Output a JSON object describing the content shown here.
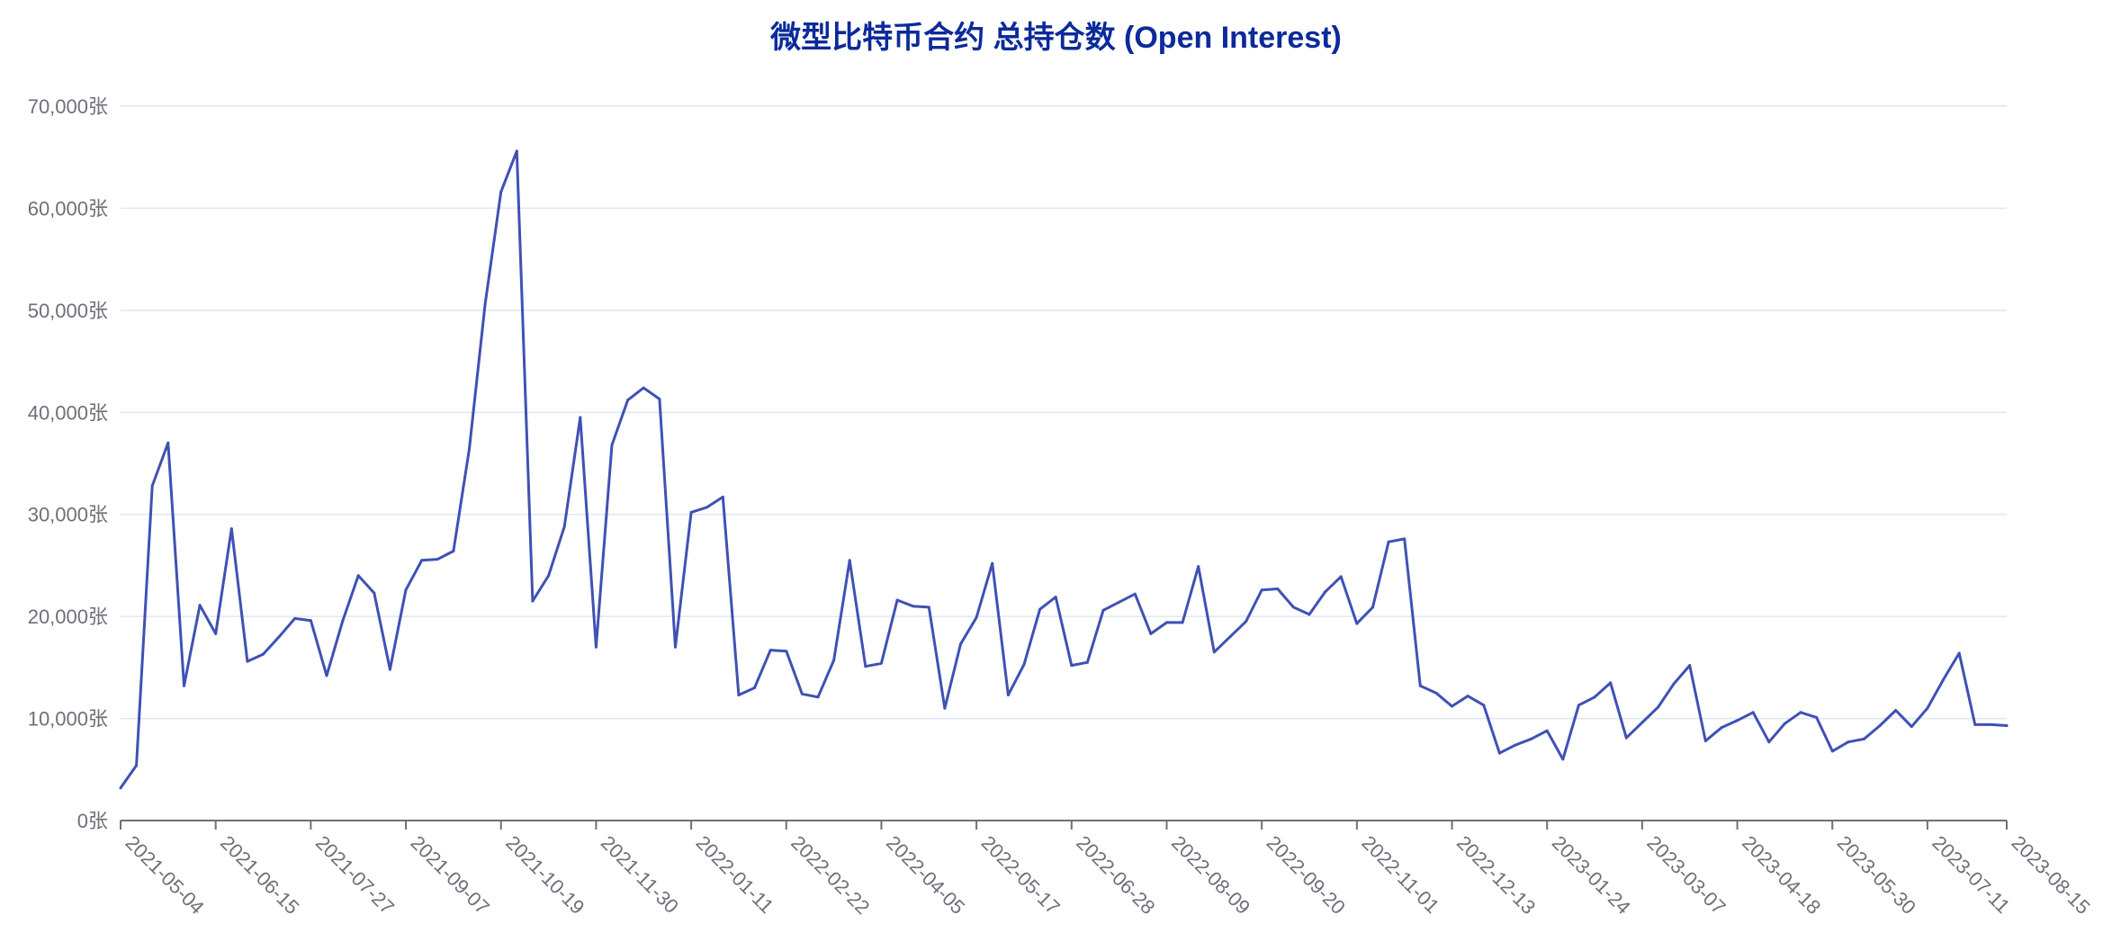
{
  "chart_data": {
    "type": "line",
    "title": "微型比特币合约 总持仓数 (Open Interest)",
    "xlabel": "",
    "ylabel": "",
    "ylim": [
      0,
      70000
    ],
    "y_ticks": [
      "0张",
      "10,000张",
      "20,000张",
      "30,000张",
      "40,000张",
      "50,000张",
      "60,000张",
      "70,000张"
    ],
    "x_ticks": [
      "2021-05-04",
      "2021-06-15",
      "2021-07-27",
      "2021-09-07",
      "2021-10-19",
      "2021-11-30",
      "2022-01-11",
      "2022-02-22",
      "2022-04-05",
      "2022-05-17",
      "2022-06-28",
      "2022-08-09",
      "2022-09-20",
      "2022-11-01",
      "2022-12-13",
      "2023-01-24",
      "2023-03-07",
      "2023-04-18",
      "2023-05-30",
      "2023-07-11",
      "2023-08-15"
    ],
    "grid": true,
    "legend": "none",
    "colors": {
      "line": "#3f51b5",
      "grid": "#e0e6f1",
      "axis": "#6e7079",
      "title": "#0c2a9a"
    },
    "series": [
      {
        "x": [
          "2021-05-04",
          "2021-05-11",
          "2021-05-18",
          "2021-05-25",
          "2021-06-01",
          "2021-06-08",
          "2021-06-15",
          "2021-06-22",
          "2021-06-29",
          "2021-07-06",
          "2021-07-13",
          "2021-07-20",
          "2021-07-27",
          "2021-08-03",
          "2021-08-10",
          "2021-08-17",
          "2021-08-24",
          "2021-08-31",
          "2021-09-07",
          "2021-09-14",
          "2021-09-21",
          "2021-09-28",
          "2021-10-05",
          "2021-10-12",
          "2021-10-19",
          "2021-10-26",
          "2021-11-02",
          "2021-11-09",
          "2021-11-16",
          "2021-11-23",
          "2021-11-30",
          "2021-12-07",
          "2021-12-14",
          "2021-12-21",
          "2021-12-28",
          "2022-01-04",
          "2022-01-11",
          "2022-01-18",
          "2022-01-25",
          "2022-02-01",
          "2022-02-08",
          "2022-02-15",
          "2022-02-22",
          "2022-03-01",
          "2022-03-08",
          "2022-03-15",
          "2022-03-22",
          "2022-03-29",
          "2022-04-05",
          "2022-04-12",
          "2022-04-19",
          "2022-04-26",
          "2022-05-03",
          "2022-05-10",
          "2022-05-17",
          "2022-05-24",
          "2022-05-31",
          "2022-06-07",
          "2022-06-14",
          "2022-06-21",
          "2022-06-28",
          "2022-07-05",
          "2022-07-12",
          "2022-07-19",
          "2022-07-26",
          "2022-08-02",
          "2022-08-09",
          "2022-08-16",
          "2022-08-23",
          "2022-08-30",
          "2022-09-06",
          "2022-09-13",
          "2022-09-20",
          "2022-09-27",
          "2022-10-04",
          "2022-10-11",
          "2022-10-18",
          "2022-10-25",
          "2022-11-01",
          "2022-11-08",
          "2022-11-15",
          "2022-11-22",
          "2022-11-29",
          "2022-12-06",
          "2022-12-13",
          "2022-12-20",
          "2022-12-27",
          "2023-01-03",
          "2023-01-10",
          "2023-01-17",
          "2023-01-24",
          "2023-01-31",
          "2023-02-07",
          "2023-02-14",
          "2023-02-21",
          "2023-02-28",
          "2023-03-07",
          "2023-03-14",
          "2023-03-21",
          "2023-03-28",
          "2023-04-04",
          "2023-04-11",
          "2023-04-18",
          "2023-04-25",
          "2023-05-02",
          "2023-05-09",
          "2023-05-16",
          "2023-05-23",
          "2023-05-30",
          "2023-06-06",
          "2023-06-13",
          "2023-06-20",
          "2023-06-27",
          "2023-07-04",
          "2023-07-11",
          "2023-07-18",
          "2023-07-25",
          "2023-08-01",
          "2023-08-08",
          "2023-08-15"
        ],
        "y": [
          3200,
          5400,
          32800,
          37000,
          13200,
          21100,
          18300,
          28600,
          15600,
          16300,
          18000,
          19800,
          19600,
          14200,
          19500,
          24000,
          22300,
          14800,
          22600,
          25500,
          25600,
          26400,
          36400,
          50600,
          61600,
          65600,
          21500,
          24000,
          28800,
          39500,
          17000,
          36800,
          41200,
          42400,
          41300,
          17000,
          30200,
          30700,
          31700,
          12300,
          13000,
          16700,
          16600,
          12400,
          12100,
          15700,
          25500,
          15100,
          15400,
          21600,
          21000,
          20900,
          11000,
          17300,
          19900,
          25200,
          12300,
          15300,
          20700,
          21900,
          15200,
          15500,
          20600,
          21400,
          22200,
          18300,
          19400,
          19400,
          24900,
          16500,
          18000,
          19500,
          22600,
          22700,
          20900,
          20200,
          22400,
          23900,
          19300,
          20900,
          27300,
          27600,
          13200,
          12500,
          11200,
          12200,
          11300,
          6600,
          7400,
          8000,
          8800,
          6000,
          11300,
          12100,
          13500,
          8100,
          9600,
          11100,
          13400,
          15200,
          7800,
          9100,
          9800,
          10600,
          7700,
          9500,
          10600,
          10100,
          6800,
          7700,
          8000,
          9300,
          10800,
          9200,
          11000,
          13800,
          16400,
          9400,
          9400,
          9300
        ]
      }
    ]
  }
}
